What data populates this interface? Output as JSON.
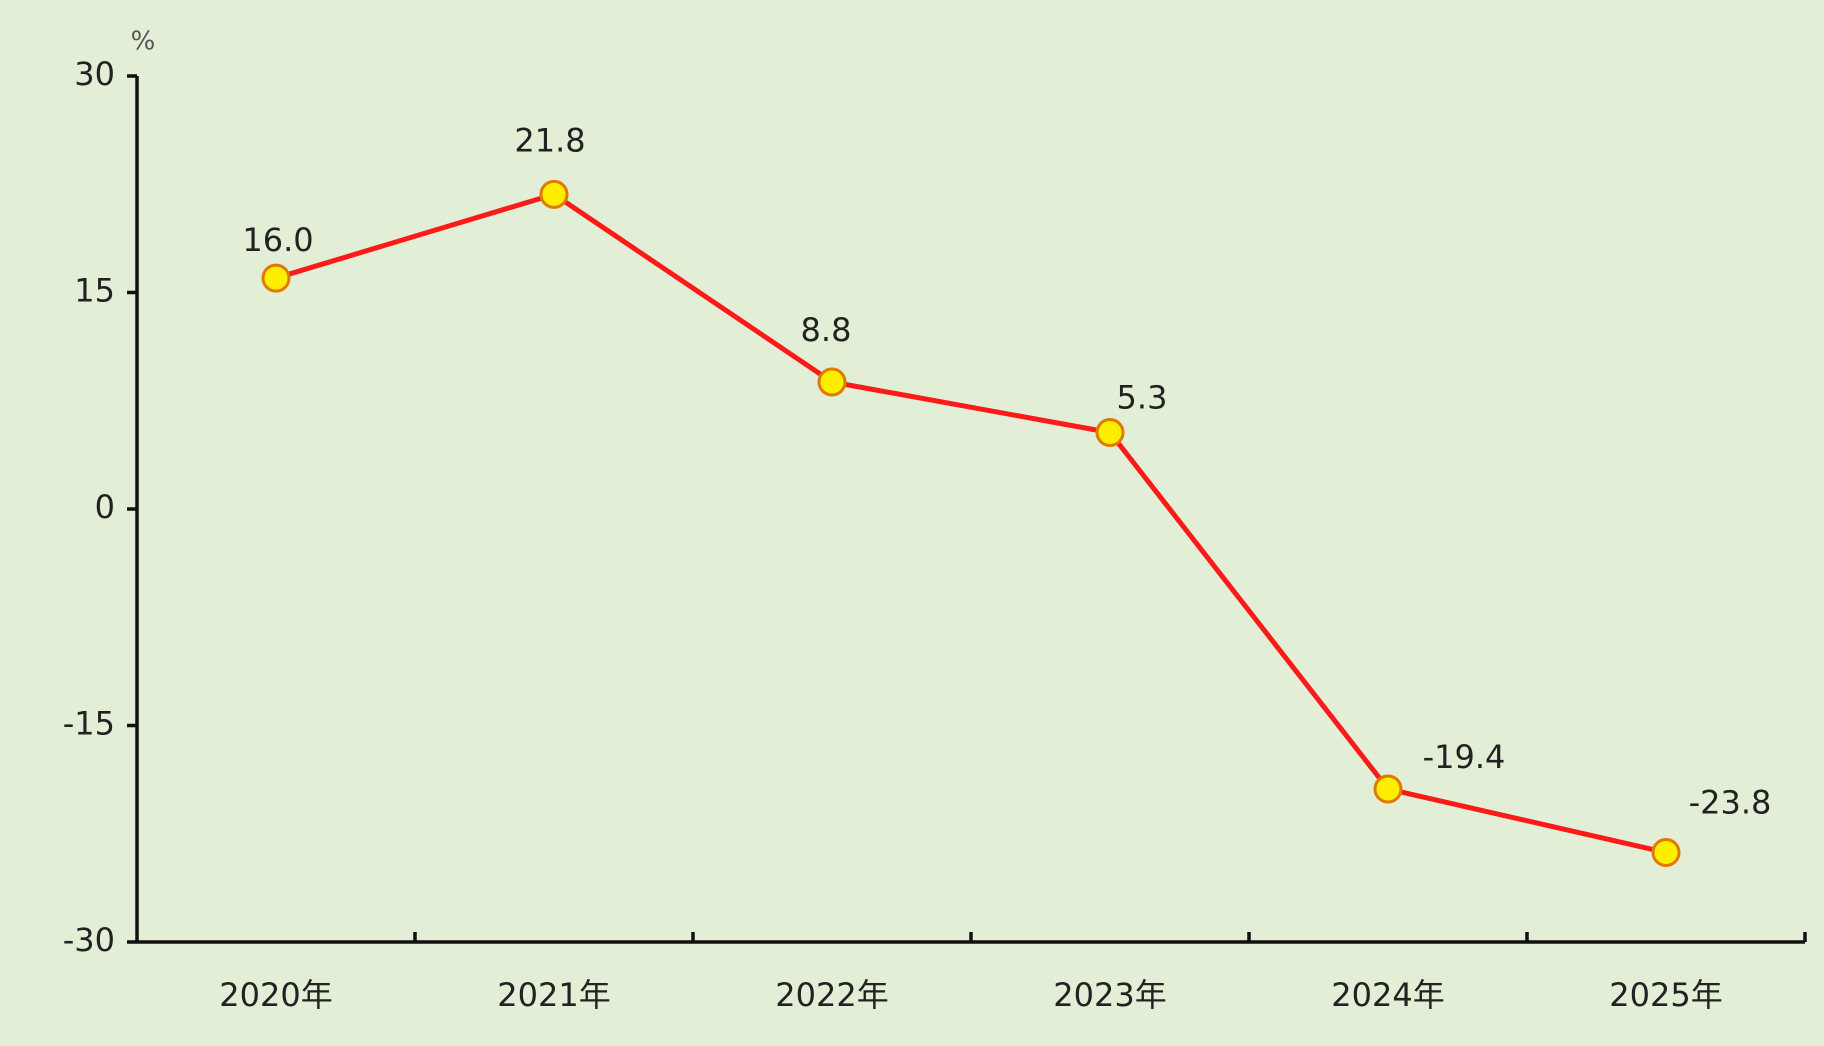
{
  "chart_data": {
    "type": "line",
    "y_unit": "%",
    "categories": [
      "2020年",
      "2021年",
      "2022年",
      "2023年",
      "2024年",
      "2025年"
    ],
    "values": [
      16.0,
      21.8,
      8.8,
      5.3,
      -19.4,
      -23.8
    ],
    "value_labels": [
      "16.0",
      "21.8",
      "8.8",
      "5.3",
      "-19.4",
      "-23.8"
    ],
    "color": "#ff1a1a",
    "marker_color": "#ffee00",
    "marker_edge_color": "#e07a00",
    "ylim": [
      -30,
      30
    ],
    "yticks": [
      -30,
      -15,
      0,
      15,
      30
    ],
    "grid": false
  }
}
